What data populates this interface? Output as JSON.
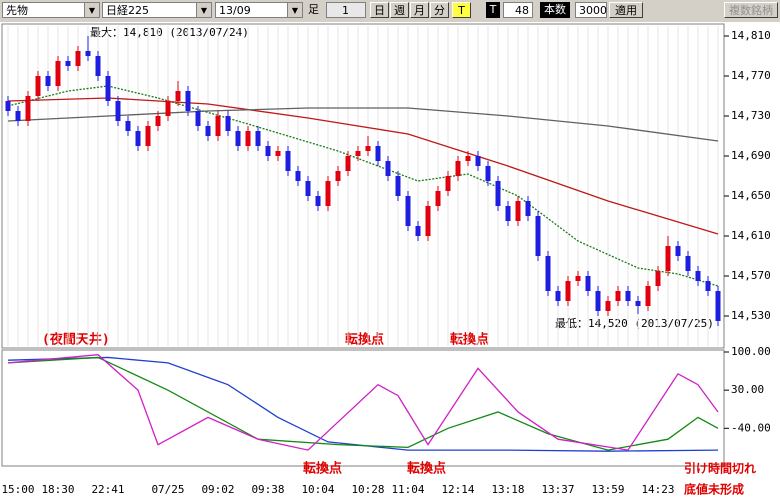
{
  "toolbar": {
    "product": "先物",
    "index": "日経225",
    "contract": "13/09",
    "bar_label": "足",
    "bar_value": "1",
    "day": "日",
    "week": "週",
    "month": "月",
    "minute": "分",
    "tick": "T",
    "t_label": "T",
    "t_value": "48",
    "count_label": "本数",
    "count_value": "3000",
    "apply": "適用",
    "multi": "複数銘柄"
  },
  "chart_data": [
    {
      "type": "candlestick",
      "categories": [
        null,
        "15:00",
        null,
        null,
        null,
        "18:30",
        null,
        null,
        null,
        null,
        "22:41",
        null,
        null,
        null,
        null,
        null,
        "07/25",
        null,
        null,
        null,
        null,
        "09:02",
        null,
        null,
        null,
        null,
        "09:38",
        null,
        null,
        null,
        null,
        "10:04",
        null,
        null,
        null,
        null,
        "10:28",
        null,
        null,
        null,
        "11:04",
        null,
        null,
        null,
        null,
        "12:14",
        null,
        null,
        null,
        null,
        "13:18",
        null,
        null,
        null,
        null,
        "13:37",
        null,
        null,
        null,
        null,
        "13:59",
        null,
        null,
        null,
        null,
        "14:23",
        null,
        null,
        null,
        null,
        null,
        null
      ],
      "open": [
        14745,
        14735,
        14725,
        14750,
        14770,
        14760,
        14785,
        14780,
        14795,
        14790,
        14770,
        14745,
        14725,
        14715,
        14700,
        14720,
        14730,
        14745,
        14755,
        14735,
        14720,
        14710,
        14730,
        14715,
        14700,
        14715,
        14700,
        14690,
        14695,
        14675,
        14665,
        14650,
        14640,
        14665,
        14675,
        14690,
        14695,
        14700,
        14685,
        14670,
        14650,
        14620,
        14610,
        14640,
        14655,
        14670,
        14685,
        14690,
        14680,
        14665,
        14640,
        14625,
        14645,
        14630,
        14590,
        14555,
        14545,
        14565,
        14570,
        14555,
        14535,
        14545,
        14555,
        14545,
        14540,
        14560,
        14575,
        14600,
        14590,
        14575,
        14565,
        14555
      ],
      "high": [
        14750,
        14740,
        14755,
        14775,
        14775,
        14790,
        14790,
        14800,
        14810,
        14795,
        14775,
        14750,
        14730,
        14720,
        14725,
        14735,
        14750,
        14765,
        14760,
        14740,
        14725,
        14735,
        14735,
        14720,
        14720,
        14720,
        14705,
        14700,
        14700,
        14680,
        14670,
        14655,
        14670,
        14680,
        14695,
        14700,
        14710,
        14705,
        14690,
        14675,
        14655,
        14625,
        14645,
        14660,
        14675,
        14690,
        14695,
        14695,
        14685,
        14670,
        14645,
        14650,
        14650,
        14635,
        14595,
        14560,
        14570,
        14575,
        14575,
        14560,
        14550,
        14560,
        14560,
        14550,
        14565,
        14580,
        14610,
        14605,
        14595,
        14580,
        14570,
        14560
      ],
      "low": [
        14730,
        14720,
        14720,
        14745,
        14755,
        14755,
        14775,
        14775,
        14785,
        14765,
        14740,
        14720,
        14710,
        14695,
        14695,
        14715,
        14725,
        14740,
        14730,
        14715,
        14705,
        14705,
        14710,
        14695,
        14695,
        14695,
        14685,
        14685,
        14670,
        14660,
        14645,
        14635,
        14635,
        14660,
        14670,
        14685,
        14690,
        14680,
        14665,
        14645,
        14615,
        14605,
        14605,
        14635,
        14650,
        14665,
        14680,
        14675,
        14660,
        14635,
        14620,
        14620,
        14625,
        14585,
        14550,
        14540,
        14540,
        14560,
        14550,
        14530,
        14530,
        14540,
        14540,
        14532,
        14535,
        14555,
        14570,
        14585,
        14570,
        14560,
        14550,
        14520
      ],
      "close": [
        14735,
        14725,
        14750,
        14770,
        14760,
        14785,
        14780,
        14795,
        14790,
        14770,
        14745,
        14725,
        14715,
        14700,
        14720,
        14730,
        14745,
        14755,
        14735,
        14720,
        14710,
        14730,
        14715,
        14700,
        14715,
        14700,
        14690,
        14695,
        14675,
        14665,
        14650,
        14640,
        14665,
        14675,
        14690,
        14695,
        14700,
        14685,
        14670,
        14650,
        14620,
        14610,
        14640,
        14655,
        14670,
        14685,
        14690,
        14680,
        14665,
        14640,
        14625,
        14645,
        14630,
        14590,
        14555,
        14545,
        14565,
        14570,
        14555,
        14535,
        14545,
        14555,
        14545,
        14540,
        14560,
        14575,
        14600,
        14590,
        14575,
        14565,
        14555,
        14525
      ],
      "up_color": "#e0000f",
      "down_color": "#1e1ee0",
      "lines": [
        {
          "color": "#1a7a1a",
          "x": [
            0,
            6,
            10,
            15,
            24,
            33,
            41,
            46,
            51,
            57,
            63,
            67,
            71
          ],
          "values": [
            14740,
            14755,
            14760,
            14748,
            14722,
            14695,
            14665,
            14672,
            14650,
            14605,
            14578,
            14572,
            14560
          ]
        },
        {
          "color": "#c01818",
          "x": [
            0,
            10,
            20,
            30,
            40,
            50,
            60,
            71
          ],
          "values": [
            14745,
            14748,
            14742,
            14728,
            14712,
            14680,
            14645,
            14612
          ]
        },
        {
          "color": "#606060",
          "x": [
            0,
            10,
            20,
            30,
            40,
            50,
            60,
            71
          ],
          "values": [
            14725,
            14730,
            14735,
            14738,
            14738,
            14730,
            14720,
            14705
          ]
        }
      ],
      "ylim": [
        14500,
        14820
      ],
      "yticks": [
        {
          "value": 14530,
          "label": "14,530"
        },
        {
          "value": 14570,
          "label": "14,570"
        },
        {
          "value": 14610,
          "label": "14,610"
        },
        {
          "value": 14650,
          "label": "14,650"
        },
        {
          "value": 14690,
          "label": "14,690"
        },
        {
          "value": 14730,
          "label": "14,730"
        },
        {
          "value": 14770,
          "label": "14,770"
        },
        {
          "value": 14810,
          "label": "14,810"
        }
      ],
      "max_label": "最大：14,810 (2013/07/24)",
      "min_label": "最低：14,520 (2013/07/25)",
      "annotations": [
        "(夜間天井)",
        "転換点",
        "転換点"
      ]
    },
    {
      "type": "line",
      "series": [
        {
          "color": "#2040d0",
          "x": [
            0,
            10,
            16,
            22,
            27,
            32,
            40,
            50,
            60,
            71
          ],
          "values": [
            85,
            90,
            80,
            40,
            -20,
            -65,
            -80,
            -80,
            -82,
            -80
          ]
        },
        {
          "color": "#138a13",
          "x": [
            0,
            9,
            16,
            25,
            33,
            40,
            44,
            49,
            54,
            60,
            66,
            69,
            71
          ],
          "values": [
            80,
            90,
            30,
            -60,
            -70,
            -75,
            -40,
            -10,
            -50,
            -80,
            -60,
            -20,
            -40
          ]
        },
        {
          "color": "#d020c8",
          "x": [
            0,
            9,
            13,
            15,
            20,
            25,
            30,
            37,
            39,
            42,
            47,
            51,
            55,
            62,
            67,
            69,
            71
          ],
          "values": [
            80,
            95,
            30,
            -70,
            -20,
            -60,
            -80,
            40,
            20,
            -70,
            70,
            -10,
            -60,
            -80,
            60,
            40,
            -10
          ]
        }
      ],
      "ylim": [
        -100,
        100
      ],
      "yticks": [
        {
          "value": 100,
          "label": "100.00"
        },
        {
          "value": 30,
          "label": "30.00"
        },
        {
          "value": -40,
          "label": "-40.00"
        }
      ],
      "annotations": [
        "転換点",
        "転換点",
        "引け時間切れ",
        "底値未形成"
      ]
    }
  ]
}
